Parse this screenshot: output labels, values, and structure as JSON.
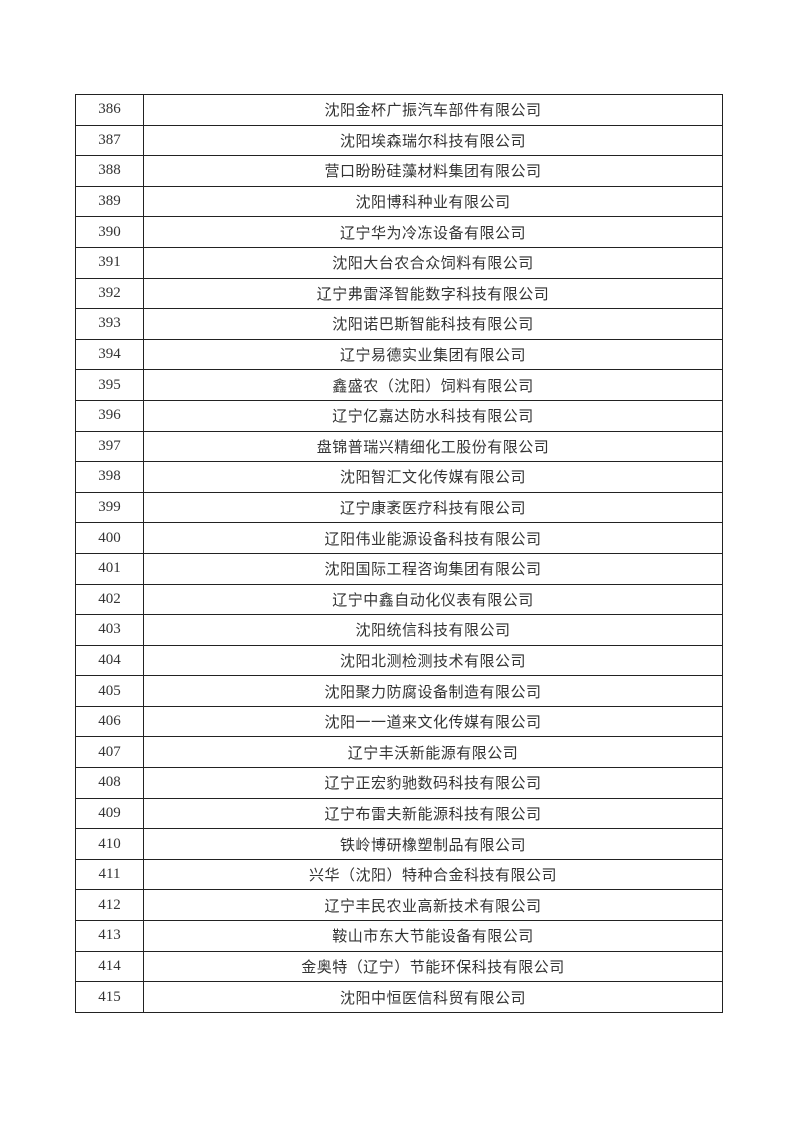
{
  "rows": [
    {
      "no": "386",
      "name": "沈阳金杯广振汽车部件有限公司"
    },
    {
      "no": "387",
      "name": "沈阳埃森瑞尔科技有限公司"
    },
    {
      "no": "388",
      "name": "营口盼盼硅藻材料集团有限公司"
    },
    {
      "no": "389",
      "name": "沈阳博科种业有限公司"
    },
    {
      "no": "390",
      "name": "辽宁华为冷冻设备有限公司"
    },
    {
      "no": "391",
      "name": "沈阳大台农合众饲料有限公司"
    },
    {
      "no": "392",
      "name": "辽宁弗雷泽智能数字科技有限公司"
    },
    {
      "no": "393",
      "name": "沈阳诺巴斯智能科技有限公司"
    },
    {
      "no": "394",
      "name": "辽宁易德实业集团有限公司"
    },
    {
      "no": "395",
      "name": "鑫盛农（沈阳）饲料有限公司"
    },
    {
      "no": "396",
      "name": "辽宁亿嘉达防水科技有限公司"
    },
    {
      "no": "397",
      "name": "盘锦普瑞兴精细化工股份有限公司"
    },
    {
      "no": "398",
      "name": "沈阳智汇文化传媒有限公司"
    },
    {
      "no": "399",
      "name": "辽宁康袤医疗科技有限公司"
    },
    {
      "no": "400",
      "name": "辽阳伟业能源设备科技有限公司"
    },
    {
      "no": "401",
      "name": "沈阳国际工程咨询集团有限公司"
    },
    {
      "no": "402",
      "name": "辽宁中鑫自动化仪表有限公司"
    },
    {
      "no": "403",
      "name": "沈阳统信科技有限公司"
    },
    {
      "no": "404",
      "name": "沈阳北测检测技术有限公司"
    },
    {
      "no": "405",
      "name": "沈阳聚力防腐设备制造有限公司"
    },
    {
      "no": "406",
      "name": "沈阳一一道来文化传媒有限公司"
    },
    {
      "no": "407",
      "name": "辽宁丰沃新能源有限公司"
    },
    {
      "no": "408",
      "name": "辽宁正宏豹驰数码科技有限公司"
    },
    {
      "no": "409",
      "name": "辽宁布雷夫新能源科技有限公司"
    },
    {
      "no": "410",
      "name": "铁岭博研橡塑制品有限公司"
    },
    {
      "no": "411",
      "name": "兴华（沈阳）特种合金科技有限公司"
    },
    {
      "no": "412",
      "name": "辽宁丰民农业高新技术有限公司"
    },
    {
      "no": "413",
      "name": "鞍山市东大节能设备有限公司"
    },
    {
      "no": "414",
      "name": "金奥特（辽宁）节能环保科技有限公司"
    },
    {
      "no": "415",
      "name": "沈阳中恒医信科贸有限公司"
    }
  ]
}
